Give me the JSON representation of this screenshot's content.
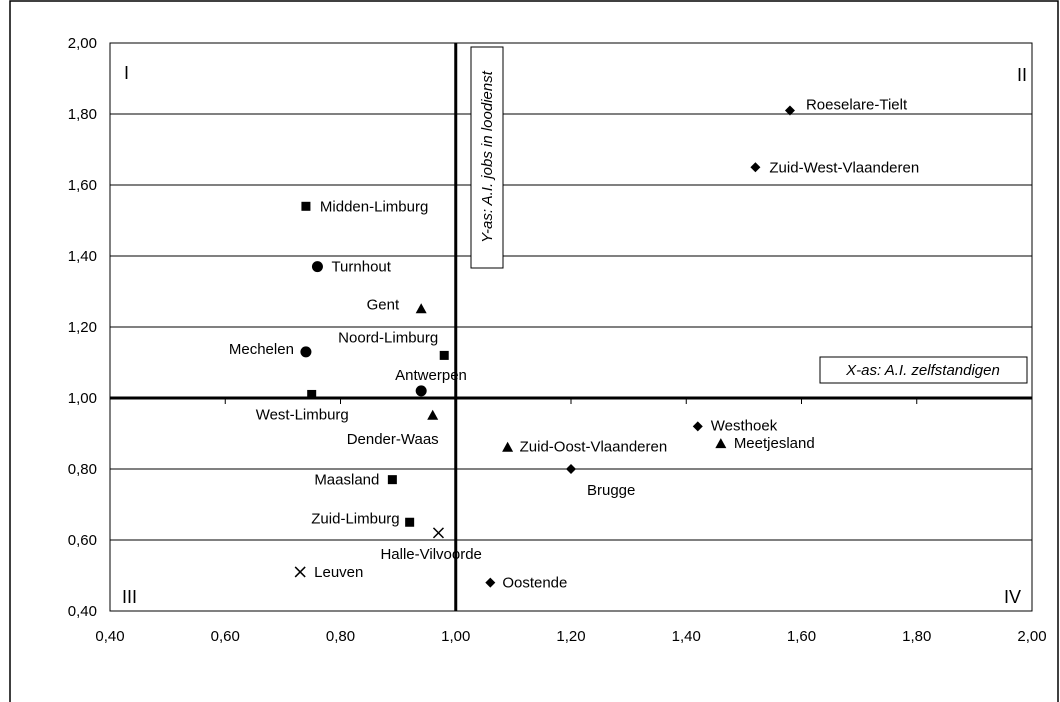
{
  "chart_data": {
    "type": "scatter",
    "title": "",
    "xlim": [
      0.4,
      2.0
    ],
    "ylim": [
      0.4,
      2.0
    ],
    "x_ticks": [
      "0,40",
      "0,60",
      "0,80",
      "1,00",
      "1,20",
      "1,40",
      "1,60",
      "1,80",
      "2,00"
    ],
    "y_ticks": [
      "0,40",
      "0,60",
      "0,80",
      "1,00",
      "1,20",
      "1,40",
      "1,60",
      "1,80",
      "2,00"
    ],
    "grid": "horizontal",
    "crosshair": {
      "x": 1.0,
      "y": 1.0
    },
    "x_axis_note": "X-as: A.I. zelfstandigen",
    "y_axis_note": "Y-as: A.I. jobs in loodienst",
    "quadrants": {
      "top_left": "I",
      "top_right": "II",
      "bottom_left": "III",
      "bottom_right": "IV"
    },
    "points": [
      {
        "label": "Roeselare-Tielt",
        "x": 1.58,
        "y": 1.81,
        "marker": "diamond"
      },
      {
        "label": "Zuid-West-Vlaanderen",
        "x": 1.52,
        "y": 1.65,
        "marker": "diamond"
      },
      {
        "label": "Midden-Limburg",
        "x": 0.74,
        "y": 1.54,
        "marker": "square"
      },
      {
        "label": "Turnhout",
        "x": 0.76,
        "y": 1.37,
        "marker": "circle"
      },
      {
        "label": "Gent",
        "x": 0.94,
        "y": 1.25,
        "marker": "triangle"
      },
      {
        "label": "Mechelen",
        "x": 0.74,
        "y": 1.13,
        "marker": "circle"
      },
      {
        "label": "Noord-Limburg",
        "x": 0.98,
        "y": 1.12,
        "marker": "square"
      },
      {
        "label": "Antwerpen",
        "x": 0.94,
        "y": 1.02,
        "marker": "circle"
      },
      {
        "label": "West-Limburg",
        "x": 0.75,
        "y": 1.01,
        "marker": "square"
      },
      {
        "label": "Dender-Waas",
        "x": 0.96,
        "y": 0.95,
        "marker": "triangle"
      },
      {
        "label": "Westhoek",
        "x": 1.42,
        "y": 0.92,
        "marker": "diamond"
      },
      {
        "label": "Meetjesland",
        "x": 1.46,
        "y": 0.87,
        "marker": "triangle"
      },
      {
        "label": "Zuid-Oost-Vlaanderen",
        "x": 1.09,
        "y": 0.86,
        "marker": "triangle"
      },
      {
        "label": "Brugge",
        "x": 1.2,
        "y": 0.8,
        "marker": "diamond"
      },
      {
        "label": "Maasland",
        "x": 0.89,
        "y": 0.77,
        "marker": "square"
      },
      {
        "label": "Zuid-Limburg",
        "x": 0.92,
        "y": 0.65,
        "marker": "square"
      },
      {
        "label": "Halle-Vilvoorde",
        "x": 0.97,
        "y": 0.62,
        "marker": "cross"
      },
      {
        "label": "Leuven",
        "x": 0.73,
        "y": 0.51,
        "marker": "cross"
      },
      {
        "label": "Oostende",
        "x": 1.06,
        "y": 0.48,
        "marker": "diamond"
      }
    ]
  }
}
